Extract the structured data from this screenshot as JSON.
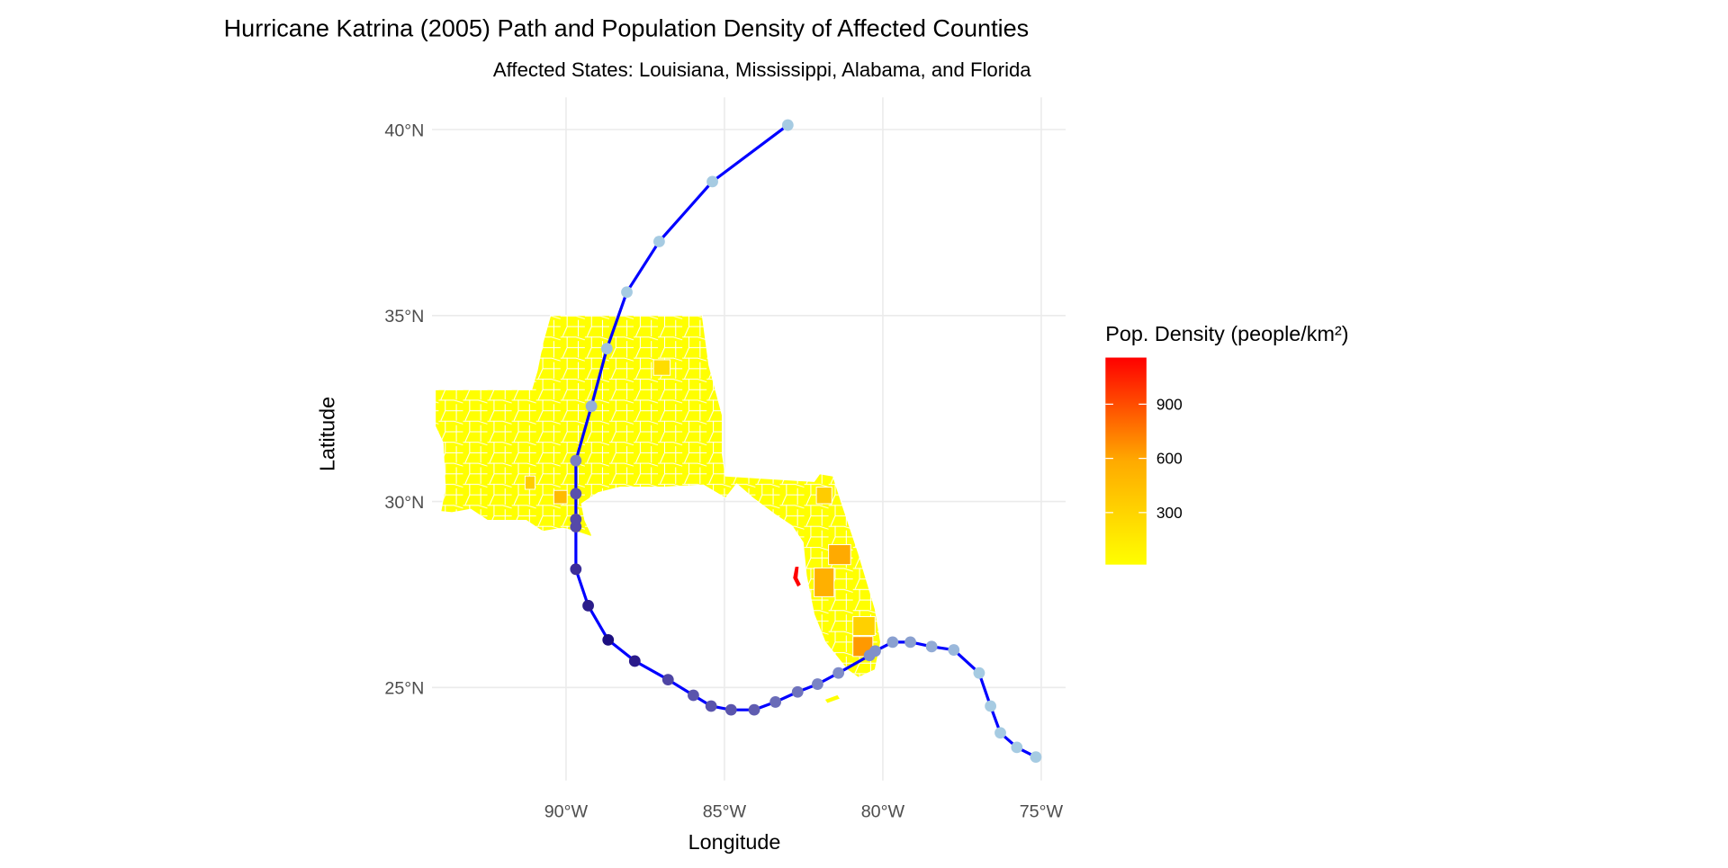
{
  "chart_data": {
    "type": "scatter",
    "title": "Hurricane Katrina (2005) Path and Population Density of Affected Counties",
    "subtitle": "Affected States: Louisiana, Mississippi, Alabama, and Florida",
    "xlabel": "Longitude",
    "ylabel": "Latitude",
    "xlim": [
      -94.1,
      -74.5
    ],
    "ylim": [
      22.5,
      40.8
    ],
    "x_ticks": [
      {
        "value": -90,
        "label": "90°W"
      },
      {
        "value": -85,
        "label": "85°W"
      },
      {
        "value": -80,
        "label": "80°W"
      },
      {
        "value": -75,
        "label": "75°W"
      }
    ],
    "y_ticks": [
      {
        "value": 40,
        "label": "40°N"
      },
      {
        "value": 35,
        "label": "35°N"
      },
      {
        "value": 30,
        "label": "30°N"
      },
      {
        "value": 25,
        "label": "25°N"
      }
    ],
    "grid": true,
    "path_color": "#0000ff",
    "track": [
      {
        "lon": -75.17,
        "lat": 23.13,
        "color": "#a6cbe2"
      },
      {
        "lon": -75.77,
        "lat": 23.39,
        "color": "#a6cbe2"
      },
      {
        "lon": -76.29,
        "lat": 23.78,
        "color": "#a6cbe2"
      },
      {
        "lon": -76.6,
        "lat": 24.5,
        "color": "#a6cbe2"
      },
      {
        "lon": -76.96,
        "lat": 25.39,
        "color": "#a6cbe2"
      },
      {
        "lon": -77.76,
        "lat": 26.01,
        "color": "#9ab8db"
      },
      {
        "lon": -78.46,
        "lat": 26.1,
        "color": "#92abd5"
      },
      {
        "lon": -79.13,
        "lat": 26.22,
        "color": "#8aa0d0"
      },
      {
        "lon": -79.69,
        "lat": 26.22,
        "color": "#8aa0d0"
      },
      {
        "lon": -80.24,
        "lat": 25.98,
        "color": "#8090ca"
      },
      {
        "lon": -80.42,
        "lat": 25.86,
        "color": "#8090ca"
      },
      {
        "lon": -81.4,
        "lat": 25.39,
        "color": "#7f8cc8"
      },
      {
        "lon": -82.06,
        "lat": 25.09,
        "color": "#7a84c4"
      },
      {
        "lon": -82.69,
        "lat": 24.88,
        "color": "#6f73bc"
      },
      {
        "lon": -83.39,
        "lat": 24.61,
        "color": "#6a6cb8"
      },
      {
        "lon": -84.06,
        "lat": 24.4,
        "color": "#5f5cb0"
      },
      {
        "lon": -84.79,
        "lat": 24.4,
        "color": "#5a55ac"
      },
      {
        "lon": -85.42,
        "lat": 24.5,
        "color": "#5a55ac"
      },
      {
        "lon": -85.98,
        "lat": 24.79,
        "color": "#5a55ac"
      },
      {
        "lon": -86.78,
        "lat": 25.21,
        "color": "#4e45a4"
      },
      {
        "lon": -87.83,
        "lat": 25.71,
        "color": "#2a1a8a"
      },
      {
        "lon": -88.67,
        "lat": 26.28,
        "color": "#1c0f80"
      },
      {
        "lon": -89.3,
        "lat": 27.2,
        "color": "#2b1d8a"
      },
      {
        "lon": -89.69,
        "lat": 28.18,
        "color": "#3d2f98"
      },
      {
        "lon": -89.69,
        "lat": 29.32,
        "color": "#5549a8"
      },
      {
        "lon": -89.69,
        "lat": 29.52,
        "color": "#5549a8"
      },
      {
        "lon": -89.69,
        "lat": 30.21,
        "color": "#5a50ac"
      },
      {
        "lon": -89.69,
        "lat": 31.1,
        "color": "#7a7ec2"
      },
      {
        "lon": -89.2,
        "lat": 32.56,
        "color": "#95afd6"
      },
      {
        "lon": -88.71,
        "lat": 34.11,
        "color": "#9fc0de"
      },
      {
        "lon": -88.08,
        "lat": 35.63,
        "color": "#a6cbe2"
      },
      {
        "lon": -87.06,
        "lat": 36.99,
        "color": "#a6cbe2"
      },
      {
        "lon": -85.38,
        "lat": 38.6,
        "color": "#a6cbe2"
      },
      {
        "lon": -83.0,
        "lat": 40.12,
        "color": "#a6cbe2"
      }
    ],
    "legend": {
      "title": "Pop. Density (people/km²)",
      "placement": "right",
      "range": [
        12,
        1158
      ],
      "low_color": "#ffff00",
      "high_color": "#ff0000",
      "breaks": [
        {
          "value": 900,
          "label": "900"
        },
        {
          "value": 600,
          "label": "600"
        },
        {
          "value": 300,
          "label": "300"
        }
      ]
    }
  }
}
